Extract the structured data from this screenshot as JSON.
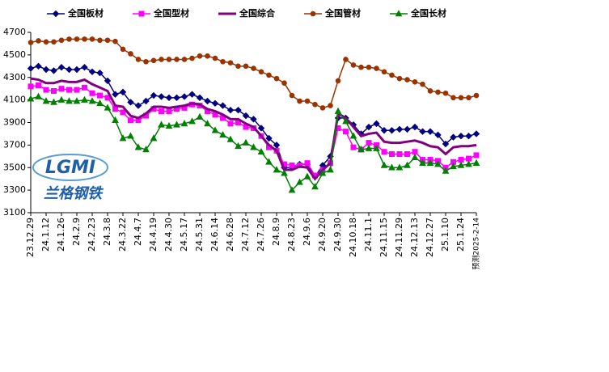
{
  "chart_data": {
    "type": "line",
    "categories": [
      "23.12.29",
      null,
      "24.1.12",
      null,
      "24.1.26",
      null,
      "24.2.9",
      null,
      "24.2.23",
      null,
      "24.3.8",
      null,
      "24.3.22",
      null,
      "24.4.7",
      null,
      "24.4.19",
      null,
      "24.4.30",
      null,
      "24.5.17",
      null,
      "24.5.31",
      null,
      "24.6.14",
      null,
      "24.6.28",
      null,
      "24.7.12",
      null,
      "24.7.26",
      null,
      "24.8.9",
      null,
      "24.8.23",
      null,
      "24.9.6",
      null,
      "24.9.20",
      null,
      "24.9.30",
      null,
      "24.10.18",
      null,
      "24.11.1",
      null,
      "24.11.15",
      null,
      "24.11.29",
      null,
      "24.12.13",
      null,
      "24.12.27",
      null,
      "25.1.10",
      null,
      "25.1.24",
      null,
      "预测2025-2-14"
    ],
    "ylim": [
      3100,
      4700
    ],
    "yticks": [
      3100,
      3300,
      3500,
      3700,
      3900,
      4100,
      4300,
      4500,
      4700
    ],
    "logo": {
      "text": "LGMI",
      "caption": "兰格钢铁"
    },
    "series": [
      {
        "name": "全国板材",
        "color": "#000080",
        "marker": "diamond",
        "values": [
          4380,
          4400,
          4370,
          4360,
          4390,
          4370,
          4370,
          4390,
          4350,
          4340,
          4270,
          4150,
          4170,
          4080,
          4050,
          4090,
          4140,
          4130,
          4120,
          4120,
          4130,
          4150,
          4120,
          4090,
          4070,
          4050,
          4010,
          4010,
          3960,
          3930,
          3850,
          3760,
          3700,
          3500,
          3500,
          3530,
          3530,
          3420,
          3520,
          3600,
          3940,
          3940,
          3880,
          3800,
          3860,
          3890,
          3830,
          3830,
          3840,
          3840,
          3860,
          3820,
          3820,
          3790,
          3710,
          3770,
          3780,
          3780,
          3800
        ]
      },
      {
        "name": "全国型材",
        "color": "#ff00ff",
        "marker": "square",
        "values": [
          4220,
          4230,
          4190,
          4180,
          4200,
          4190,
          4190,
          4210,
          4160,
          4140,
          4120,
          4020,
          3990,
          3920,
          3920,
          3960,
          4020,
          4000,
          4000,
          4020,
          4030,
          4060,
          4050,
          4000,
          3970,
          3940,
          3890,
          3900,
          3860,
          3850,
          3780,
          3680,
          3650,
          3530,
          3520,
          3520,
          3540,
          3430,
          3480,
          3540,
          3850,
          3820,
          3680,
          3660,
          3720,
          3700,
          3640,
          3620,
          3620,
          3620,
          3640,
          3570,
          3570,
          3560,
          3500,
          3550,
          3570,
          3580,
          3610
        ]
      },
      {
        "name": "全国综合",
        "color": "#800080",
        "marker": "none",
        "values": [
          4290,
          4280,
          4250,
          4250,
          4270,
          4260,
          4260,
          4280,
          4240,
          4210,
          4180,
          4050,
          4040,
          3960,
          3940,
          3980,
          4040,
          4040,
          4030,
          4040,
          4050,
          4070,
          4060,
          4020,
          4000,
          3970,
          3930,
          3930,
          3890,
          3860,
          3780,
          3700,
          3650,
          3480,
          3480,
          3510,
          3500,
          3400,
          3480,
          3540,
          3980,
          3940,
          3860,
          3780,
          3800,
          3810,
          3730,
          3720,
          3720,
          3730,
          3740,
          3720,
          3690,
          3680,
          3620,
          3680,
          3690,
          3690,
          3700
        ]
      },
      {
        "name": "全国管材",
        "color": "#993300",
        "marker": "circle",
        "values": [
          4610,
          4625,
          4615,
          4615,
          4630,
          4640,
          4640,
          4640,
          4640,
          4630,
          4630,
          4620,
          4550,
          4510,
          4460,
          4440,
          4450,
          4460,
          4460,
          4460,
          4460,
          4470,
          4490,
          4490,
          4470,
          4440,
          4430,
          4400,
          4400,
          4380,
          4350,
          4320,
          4290,
          4250,
          4140,
          4090,
          4090,
          4060,
          4030,
          4050,
          4270,
          4460,
          4410,
          4390,
          4390,
          4380,
          4350,
          4320,
          4290,
          4280,
          4260,
          4240,
          4180,
          4170,
          4160,
          4120,
          4120,
          4120,
          4140
        ]
      },
      {
        "name": "全国长材",
        "color": "#008000",
        "marker": "triangle",
        "values": [
          4110,
          4130,
          4090,
          4080,
          4100,
          4090,
          4090,
          4100,
          4090,
          4070,
          4030,
          3920,
          3760,
          3780,
          3680,
          3660,
          3760,
          3880,
          3870,
          3880,
          3890,
          3910,
          3950,
          3890,
          3830,
          3790,
          3750,
          3690,
          3720,
          3680,
          3640,
          3550,
          3480,
          3450,
          3300,
          3370,
          3420,
          3330,
          3450,
          3480,
          4000,
          3910,
          3780,
          3660,
          3670,
          3670,
          3520,
          3500,
          3500,
          3520,
          3590,
          3540,
          3540,
          3530,
          3470,
          3510,
          3520,
          3530,
          3540
        ]
      }
    ]
  }
}
